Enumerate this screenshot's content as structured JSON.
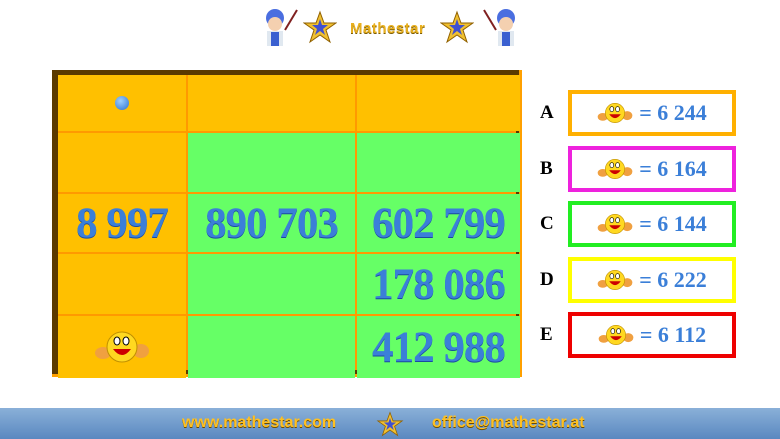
{
  "header": {
    "logo_text": "Mathestar"
  },
  "table": {
    "rows": [
      [
        "•",
        "",
        ""
      ],
      [
        "",
        "",
        ""
      ],
      [
        "8 997",
        "890 703",
        "602 799"
      ],
      [
        "",
        "",
        "178 086"
      ],
      [
        "smiley",
        "",
        "412 988"
      ]
    ]
  },
  "options": [
    {
      "letter": "A",
      "text": "= 6 244",
      "color": "#ffb000"
    },
    {
      "letter": "B",
      "text": "= 6 164",
      "color": "#ee22dd"
    },
    {
      "letter": "C",
      "text": "= 6 144",
      "color": "#22ee22"
    },
    {
      "letter": "D",
      "text": "= 6 222",
      "color": "#ffff00"
    },
    {
      "letter": "E",
      "text": "= 6 112",
      "color": "#ee0000"
    }
  ],
  "footer": {
    "website": "www.mathestar.com",
    "email": "office@mathestar.at"
  }
}
